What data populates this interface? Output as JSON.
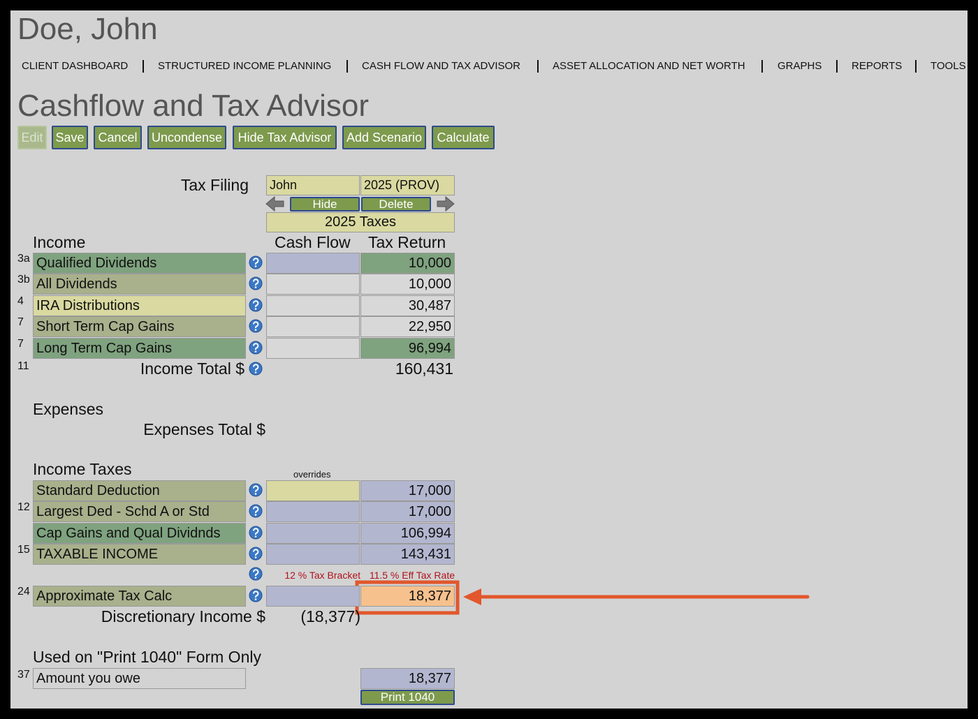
{
  "header": {
    "client": "Doe, John",
    "nav": [
      "CLIENT DASHBOARD",
      "STRUCTURED INCOME PLANNING",
      "CASH FLOW AND TAX ADVISOR",
      "ASSET ALLOCATION AND NET WORTH",
      "GRAPHS",
      "REPORTS",
      "TOOLS"
    ]
  },
  "page_title": "Cashflow and Tax Advisor",
  "toolbar": [
    "Edit",
    "Save",
    "Cancel",
    "Uncondense",
    "Hide Tax Advisor",
    "Add Scenario",
    "Calculate"
  ],
  "filing": {
    "label": "Tax Filing",
    "person": "John",
    "year": "2025 (PROV)",
    "hide": "Hide",
    "delete": "Delete",
    "caption": "2025 Taxes"
  },
  "columns": [
    "Cash Flow",
    "Tax Return"
  ],
  "income": {
    "heading": "Income",
    "rows": [
      {
        "line": "3a",
        "label": "Qualified Dividends",
        "tax_return": "10,000"
      },
      {
        "line": "3b",
        "label": "All Dividends",
        "tax_return": "10,000"
      },
      {
        "line": "4",
        "label": "IRA Distributions",
        "tax_return": "30,487"
      },
      {
        "line": "7",
        "label": "Short Term Cap Gains",
        "tax_return": "22,950"
      },
      {
        "line": "7",
        "label": "Long Term Cap Gains",
        "tax_return": "96,994"
      }
    ],
    "total": {
      "line": "11",
      "label": "Income Total $",
      "value": "160,431"
    }
  },
  "expenses": {
    "heading": "Expenses",
    "total_label": "Expenses Total $"
  },
  "income_taxes": {
    "heading": "Income Taxes",
    "overrides": "overrides",
    "rows": [
      {
        "label": "Standard Deduction",
        "tax_return": "17,000"
      },
      {
        "line": "12",
        "label": "Largest Ded - Schd A or Std",
        "tax_return": "17,000"
      },
      {
        "label": "Cap Gains and Qual Dividnds",
        "tax_return": "106,994"
      },
      {
        "line": "15",
        "label": "TAXABLE INCOME",
        "tax_return": "143,431"
      }
    ],
    "bracket": "12 % Tax Bracket",
    "eff_rate": "11.5 % Eff Tax Rate",
    "tax_calc": {
      "line": "24",
      "label": "Approximate Tax Calc",
      "tax_return": "18,377"
    },
    "discretionary": {
      "label": "Discretionary Income $",
      "value": "(18,377)"
    }
  },
  "print_1040": {
    "heading": "Used on \"Print 1040\" Form Only",
    "row": {
      "line": "37",
      "label": "Amount you owe",
      "value": "18,377"
    },
    "button": "Print 1040"
  }
}
